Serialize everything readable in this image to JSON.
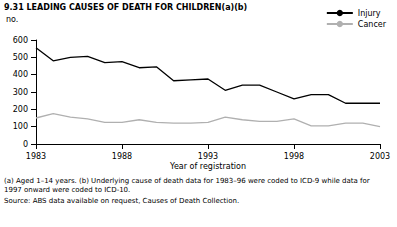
{
  "chart_data": {
    "type": "line",
    "title": "9.31 LEADING CAUSES OF DEATH FOR CHILDREN(a)(b)",
    "x_label": "Year of registration",
    "y_label": "no.",
    "x": [
      1983,
      1984,
      1985,
      1986,
      1987,
      1988,
      1989,
      1990,
      1991,
      1992,
      1993,
      1994,
      1995,
      1996,
      1997,
      1998,
      1999,
      2000,
      2001,
      2002,
      2003
    ],
    "series": [
      {
        "name": "Injury",
        "color": "#000000",
        "values": [
          555,
          480,
          500,
          505,
          470,
          475,
          440,
          445,
          365,
          370,
          375,
          310,
          340,
          340,
          300,
          260,
          285,
          285,
          235,
          235,
          235
        ]
      },
      {
        "name": "Cancer",
        "color": "#b0b0b0",
        "values": [
          150,
          175,
          155,
          145,
          125,
          125,
          140,
          125,
          120,
          120,
          125,
          155,
          140,
          130,
          130,
          145,
          105,
          105,
          120,
          120,
          100
        ]
      }
    ],
    "xlim": [
      1983,
      2003
    ],
    "xticks": [
      1983,
      1988,
      1993,
      1998,
      2003
    ],
    "ylim": [
      0,
      600
    ],
    "yticks": [
      0,
      100,
      200,
      300,
      400,
      500,
      600
    ],
    "grid": false,
    "legend": "top-right",
    "annotations": [
      "(a) Aged 1–14 years. (b) Underlying cause of death data for 1983–96 were coded to ICD-9 while data for 1997 onward were coded to ICD-10.",
      "Source: ABS data available on request, Causes of Death Collection."
    ]
  }
}
